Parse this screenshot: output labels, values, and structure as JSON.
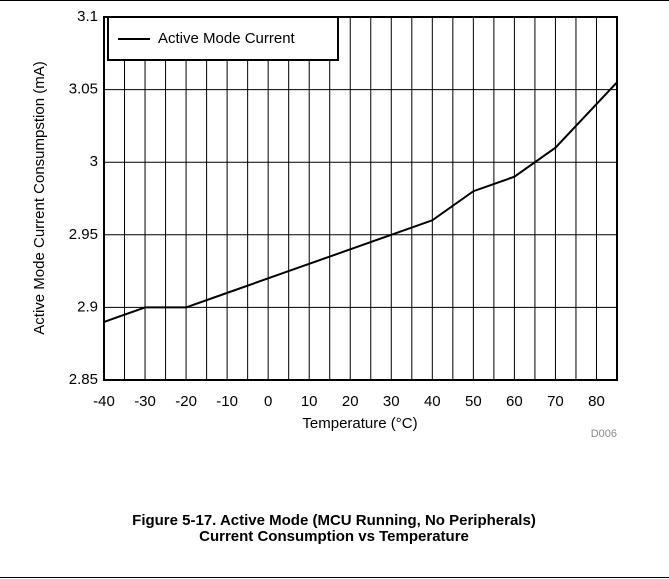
{
  "chart_data": {
    "type": "line",
    "x_label": "Temperature (°C)",
    "y_label": "Active Mode Current Consumpstion (mA)",
    "x": [
      -40,
      -30,
      -20,
      -10,
      0,
      10,
      20,
      30,
      40,
      50,
      60,
      70,
      85
    ],
    "series": [
      {
        "name": "Active Mode Current",
        "color": "#000000",
        "values": [
          2.89,
          2.9,
          2.9,
          2.91,
          2.92,
          2.93,
          2.94,
          2.95,
          2.96,
          2.98,
          2.99,
          3.01,
          3.055
        ]
      }
    ],
    "xlim": [
      -40,
      85
    ],
    "ylim": [
      2.85,
      3.1
    ],
    "xticks": [
      -40,
      -30,
      -20,
      -10,
      0,
      10,
      20,
      30,
      40,
      50,
      60,
      70,
      80
    ],
    "xgrid": [
      -40,
      -35,
      -30,
      -25,
      -20,
      -15,
      -10,
      -5,
      0,
      5,
      10,
      15,
      20,
      25,
      30,
      35,
      40,
      45,
      50,
      55,
      60,
      65,
      70,
      75,
      80,
      85
    ],
    "yticks": [
      2.85,
      2.9,
      2.95,
      3,
      3.05,
      3.1
    ],
    "grid": true,
    "legend": "upper left",
    "figure_id": "D006",
    "caption": [
      "Figure 5-17. Active Mode (MCU Running, No Peripherals)",
      "Current Consumption vs Temperature"
    ]
  }
}
